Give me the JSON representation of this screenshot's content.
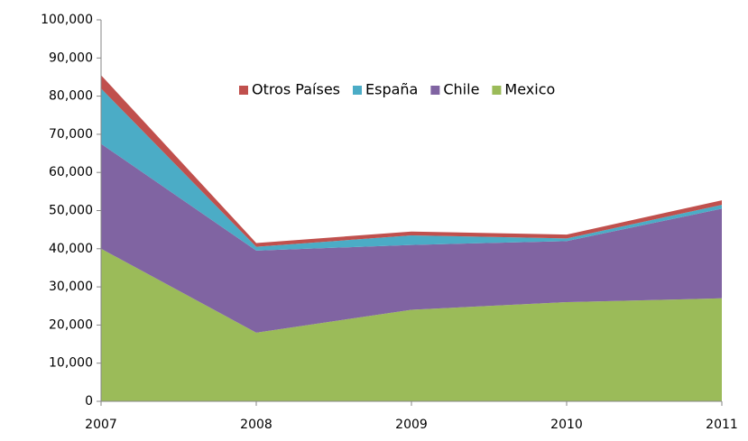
{
  "chart_data": {
    "type": "stacked_area",
    "categories": [
      "2007",
      "2008",
      "2009",
      "2010",
      "2011"
    ],
    "series": [
      {
        "name": "Otros Países",
        "color": "#c0504d",
        "values": [
          3500,
          1000,
          1000,
          1000,
          1200
        ]
      },
      {
        "name": "España",
        "color": "#4bacc6",
        "values": [
          14500,
          1000,
          2500,
          700,
          1000
        ]
      },
      {
        "name": "Chile",
        "color": "#8064a2",
        "values": [
          27500,
          21500,
          17000,
          16000,
          23500
        ]
      },
      {
        "name": "Mexico",
        "color": "#9bbb59",
        "values": [
          40000,
          18000,
          24000,
          26000,
          27000
        ]
      }
    ],
    "ylim": [
      0,
      100000
    ],
    "yticks": [
      0,
      {
        "value": 10000,
        "label": "10,000"
      },
      {
        "value": 20000,
        "label": "20,000"
      },
      {
        "value": 30000,
        "label": "30,000"
      },
      {
        "value": 40000,
        "label": "40,000"
      },
      {
        "value": 50000,
        "label": "50,000"
      },
      {
        "value": 60000,
        "label": "60,000"
      },
      {
        "value": 70000,
        "label": "70,000"
      },
      {
        "value": 80000,
        "label": "80,000"
      },
      {
        "value": 90000,
        "label": "90,000"
      },
      {
        "value": 100000,
        "label": "100,000"
      }
    ],
    "legend": "top"
  }
}
